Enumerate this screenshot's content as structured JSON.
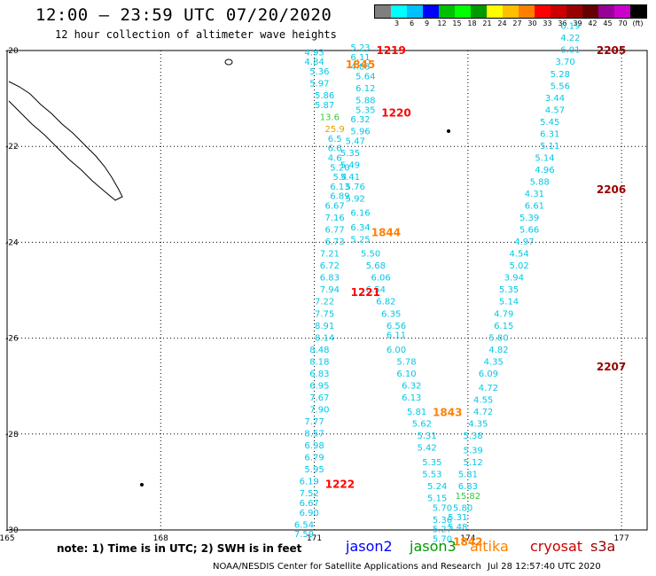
{
  "header": {
    "title": "12:00 – 23:59 UTC 07/20/2020",
    "subtitle": "12 hour collection of altimeter wave heights"
  },
  "color_scale": {
    "colors": [
      "#7f7f7f",
      "#00ffff",
      "#00bfff",
      "#0000ff",
      "#00bf00",
      "#00ff00",
      "#009900",
      "#ffff00",
      "#ffbf00",
      "#ff8000",
      "#ff0000",
      "#cc0000",
      "#990000",
      "#660000",
      "#990099",
      "#cc00cc",
      "#000000"
    ],
    "labels": [
      "",
      "3",
      "6",
      "9",
      "12",
      "15",
      "18",
      "21",
      "24",
      "27",
      "30",
      "33",
      "36",
      "39",
      "42",
      "45",
      "70"
    ],
    "unit": "(ft)"
  },
  "axes": {
    "lon_min": 165,
    "lon_max": 177.5,
    "lat_min": -30,
    "lat_max": -20,
    "x_ticks": [
      {
        "value": 165,
        "label": "165"
      },
      {
        "value": 168,
        "label": "168"
      },
      {
        "value": 171,
        "label": "171"
      },
      {
        "value": 174,
        "label": "174"
      },
      {
        "value": 177,
        "label": "177"
      }
    ],
    "y_ticks": [
      {
        "value": -20,
        "label": "-20"
      },
      {
        "value": -22,
        "label": "-22"
      },
      {
        "value": -24,
        "label": "-24"
      },
      {
        "value": -26,
        "label": "-26"
      },
      {
        "value": -28,
        "label": "-28"
      },
      {
        "value": -30,
        "label": "-30"
      }
    ]
  },
  "observations": [
    {
      "lon": 171.0,
      "lat": -20.1,
      "text": "4.93"
    },
    {
      "lon": 171.0,
      "lat": -20.3,
      "text": "4.84"
    },
    {
      "lon": 171.1,
      "lat": -20.5,
      "text": "5.36"
    },
    {
      "lon": 171.1,
      "lat": -20.75,
      "text": "5.97"
    },
    {
      "lon": 171.2,
      "lat": -21.0,
      "text": "5.86"
    },
    {
      "lon": 171.2,
      "lat": -21.2,
      "text": "5.87"
    },
    {
      "lon": 171.3,
      "lat": -21.45,
      "text": "13.6"
    },
    {
      "lon": 171.4,
      "lat": -21.7,
      "text": "25.9"
    },
    {
      "lon": 171.4,
      "lat": -21.9,
      "text": "6.5"
    },
    {
      "lon": 171.4,
      "lat": -22.1,
      "text": "6.6"
    },
    {
      "lon": 171.4,
      "lat": -22.3,
      "text": "4.6"
    },
    {
      "lon": 171.5,
      "lat": -22.5,
      "text": "5.20"
    },
    {
      "lon": 171.5,
      "lat": -22.7,
      "text": "5.4"
    },
    {
      "lon": 171.5,
      "lat": -22.9,
      "text": "6.13"
    },
    {
      "lon": 171.5,
      "lat": -23.1,
      "text": "6.89"
    },
    {
      "lon": 171.4,
      "lat": -23.3,
      "text": "6.67"
    },
    {
      "lon": 171.4,
      "lat": -23.55,
      "text": "7.16"
    },
    {
      "lon": 171.4,
      "lat": -23.8,
      "text": "6.77"
    },
    {
      "lon": 171.4,
      "lat": -24.05,
      "text": "6.73"
    },
    {
      "lon": 171.3,
      "lat": -24.3,
      "text": "7.21"
    },
    {
      "lon": 171.3,
      "lat": -24.55,
      "text": "6.72"
    },
    {
      "lon": 171.3,
      "lat": -24.8,
      "text": "6.83"
    },
    {
      "lon": 171.3,
      "lat": -25.05,
      "text": "7.94"
    },
    {
      "lon": 171.2,
      "lat": -25.3,
      "text": "7.22"
    },
    {
      "lon": 171.2,
      "lat": -25.55,
      "text": "7.75"
    },
    {
      "lon": 171.2,
      "lat": -25.8,
      "text": "8.91"
    },
    {
      "lon": 171.2,
      "lat": -26.05,
      "text": "8.14"
    },
    {
      "lon": 171.1,
      "lat": -26.3,
      "text": "8.48"
    },
    {
      "lon": 171.1,
      "lat": -26.55,
      "text": "8.18"
    },
    {
      "lon": 171.1,
      "lat": -26.8,
      "text": "6.83"
    },
    {
      "lon": 171.1,
      "lat": -27.05,
      "text": "6.95"
    },
    {
      "lon": 171.1,
      "lat": -27.3,
      "text": "7.67"
    },
    {
      "lon": 171.1,
      "lat": -27.55,
      "text": "7.90"
    },
    {
      "lon": 171.0,
      "lat": -27.8,
      "text": "7.77"
    },
    {
      "lon": 171.0,
      "lat": -28.05,
      "text": "8.57"
    },
    {
      "lon": 171.0,
      "lat": -28.3,
      "text": "6.98"
    },
    {
      "lon": 171.0,
      "lat": -28.55,
      "text": "6.79"
    },
    {
      "lon": 171.0,
      "lat": -28.8,
      "text": "5.95"
    },
    {
      "lon": 170.9,
      "lat": -29.05,
      "text": "6.19"
    },
    {
      "lon": 170.9,
      "lat": -29.3,
      "text": "7.52"
    },
    {
      "lon": 170.9,
      "lat": -29.5,
      "text": "6.67"
    },
    {
      "lon": 170.9,
      "lat": -29.7,
      "text": "6.90"
    },
    {
      "lon": 170.8,
      "lat": -29.95,
      "text": "6.54"
    },
    {
      "lon": 170.8,
      "lat": -30.15,
      "text": "7.59"
    },
    {
      "lon": 171.9,
      "lat": -20.0,
      "text": "5.23"
    },
    {
      "lon": 171.9,
      "lat": -20.2,
      "text": "6.11"
    },
    {
      "lon": 171.9,
      "lat": -20.4,
      "text": "4.83"
    },
    {
      "lon": 172.0,
      "lat": -20.6,
      "text": "5.64"
    },
    {
      "lon": 172.0,
      "lat": -20.85,
      "text": "6.12"
    },
    {
      "lon": 172.0,
      "lat": -21.1,
      "text": "5.88"
    },
    {
      "lon": 172.0,
      "lat": -21.3,
      "text": "5.35"
    },
    {
      "lon": 171.9,
      "lat": -21.5,
      "text": "6.32"
    },
    {
      "lon": 171.9,
      "lat": -21.75,
      "text": "5.96"
    },
    {
      "lon": 171.8,
      "lat": -21.95,
      "text": "5.47"
    },
    {
      "lon": 171.7,
      "lat": -22.2,
      "text": "5.35"
    },
    {
      "lon": 171.7,
      "lat": -22.45,
      "text": "5.49"
    },
    {
      "lon": 171.7,
      "lat": -22.7,
      "text": "5.41"
    },
    {
      "lon": 171.8,
      "lat": -22.9,
      "text": "5.76"
    },
    {
      "lon": 171.8,
      "lat": -23.15,
      "text": "5.92"
    },
    {
      "lon": 171.9,
      "lat": -23.45,
      "text": "6.16"
    },
    {
      "lon": 171.9,
      "lat": -23.75,
      "text": "6.34"
    },
    {
      "lon": 171.9,
      "lat": -24.0,
      "text": "5.25"
    },
    {
      "lon": 172.1,
      "lat": -24.3,
      "text": "5.50"
    },
    {
      "lon": 172.2,
      "lat": -24.55,
      "text": "5.68"
    },
    {
      "lon": 172.3,
      "lat": -24.8,
      "text": "6.06"
    },
    {
      "lon": 172.2,
      "lat": -25.05,
      "text": "6.54"
    },
    {
      "lon": 172.4,
      "lat": -25.3,
      "text": "6.82"
    },
    {
      "lon": 172.5,
      "lat": -25.55,
      "text": "6.35"
    },
    {
      "lon": 172.6,
      "lat": -25.8,
      "text": "6.56"
    },
    {
      "lon": 172.6,
      "lat": -26.0,
      "text": "6.11"
    },
    {
      "lon": 172.6,
      "lat": -26.3,
      "text": "6.00"
    },
    {
      "lon": 172.8,
      "lat": -26.55,
      "text": "5.78"
    },
    {
      "lon": 172.8,
      "lat": -26.8,
      "text": "6.10"
    },
    {
      "lon": 172.9,
      "lat": -27.05,
      "text": "6.32"
    },
    {
      "lon": 172.9,
      "lat": -27.3,
      "text": "6.13"
    },
    {
      "lon": 173.0,
      "lat": -27.6,
      "text": "5.81"
    },
    {
      "lon": 173.1,
      "lat": -27.85,
      "text": "5.62"
    },
    {
      "lon": 173.2,
      "lat": -28.1,
      "text": "5.31"
    },
    {
      "lon": 173.2,
      "lat": -28.35,
      "text": "5.42"
    },
    {
      "lon": 173.3,
      "lat": -28.65,
      "text": "5.35"
    },
    {
      "lon": 173.3,
      "lat": -28.9,
      "text": "5.53"
    },
    {
      "lon": 173.4,
      "lat": -29.15,
      "text": "5.24"
    },
    {
      "lon": 173.4,
      "lat": -29.4,
      "text": "5.15"
    },
    {
      "lon": 173.5,
      "lat": -29.6,
      "text": "5.70"
    },
    {
      "lon": 173.5,
      "lat": -29.85,
      "text": "5.36"
    },
    {
      "lon": 173.5,
      "lat": -30.05,
      "text": "5.27"
    },
    {
      "lon": 173.5,
      "lat": -30.25,
      "text": "5.70"
    },
    {
      "lon": 173.8,
      "lat": -30.0,
      "text": "5.48"
    },
    {
      "lon": 173.8,
      "lat": -29.8,
      "text": "5.31"
    },
    {
      "lon": 173.9,
      "lat": -29.6,
      "text": "5.80"
    },
    {
      "lon": 174.0,
      "lat": -29.35,
      "text": "15.82"
    },
    {
      "lon": 174.0,
      "lat": -29.15,
      "text": "6.83"
    },
    {
      "lon": 174.0,
      "lat": -28.9,
      "text": "5.81"
    },
    {
      "lon": 174.1,
      "lat": -28.65,
      "text": "5.12"
    },
    {
      "lon": 174.1,
      "lat": -28.4,
      "text": "5.39"
    },
    {
      "lon": 174.1,
      "lat": -28.1,
      "text": "5.38"
    },
    {
      "lon": 174.2,
      "lat": -27.85,
      "text": "4.35"
    },
    {
      "lon": 174.3,
      "lat": -27.6,
      "text": "4.72"
    },
    {
      "lon": 174.3,
      "lat": -27.35,
      "text": "4.55"
    },
    {
      "lon": 174.4,
      "lat": -27.1,
      "text": "4.72"
    },
    {
      "lon": 174.4,
      "lat": -26.8,
      "text": "6.09"
    },
    {
      "lon": 174.5,
      "lat": -26.55,
      "text": "4.35"
    },
    {
      "lon": 174.6,
      "lat": -26.3,
      "text": "4.82"
    },
    {
      "lon": 174.6,
      "lat": -26.05,
      "text": "5.80"
    },
    {
      "lon": 174.7,
      "lat": -25.8,
      "text": "6.15"
    },
    {
      "lon": 174.7,
      "lat": -25.55,
      "text": "4.79"
    },
    {
      "lon": 174.8,
      "lat": -25.3,
      "text": "5.14"
    },
    {
      "lon": 174.8,
      "lat": -25.05,
      "text": "5.35"
    },
    {
      "lon": 174.9,
      "lat": -24.8,
      "text": "3.94"
    },
    {
      "lon": 175.0,
      "lat": -24.55,
      "text": "5.02"
    },
    {
      "lon": 175.0,
      "lat": -24.3,
      "text": "4.54"
    },
    {
      "lon": 175.1,
      "lat": -24.05,
      "text": "4.97"
    },
    {
      "lon": 175.2,
      "lat": -23.8,
      "text": "5.66"
    },
    {
      "lon": 175.2,
      "lat": -23.55,
      "text": "5.39"
    },
    {
      "lon": 175.3,
      "lat": -23.3,
      "text": "6.61"
    },
    {
      "lon": 175.3,
      "lat": -23.05,
      "text": "4.31"
    },
    {
      "lon": 175.4,
      "lat": -22.8,
      "text": "5.88"
    },
    {
      "lon": 175.5,
      "lat": -22.55,
      "text": "4.96"
    },
    {
      "lon": 175.5,
      "lat": -22.3,
      "text": "5.14"
    },
    {
      "lon": 175.6,
      "lat": -22.05,
      "text": "5.11"
    },
    {
      "lon": 175.6,
      "lat": -21.8,
      "text": "6.31"
    },
    {
      "lon": 175.6,
      "lat": -21.55,
      "text": "5.45"
    },
    {
      "lon": 175.7,
      "lat": -21.3,
      "text": "4.57"
    },
    {
      "lon": 175.7,
      "lat": -21.05,
      "text": "3.44"
    },
    {
      "lon": 175.8,
      "lat": -20.8,
      "text": "5.56"
    },
    {
      "lon": 175.8,
      "lat": -20.55,
      "text": "5.28"
    },
    {
      "lon": 175.9,
      "lat": -20.3,
      "text": "3.70"
    },
    {
      "lon": 176.0,
      "lat": -20.05,
      "text": "6.01"
    },
    {
      "lon": 176.0,
      "lat": -19.8,
      "text": "4.22"
    },
    {
      "lon": 176.0,
      "lat": -19.55,
      "text": "6.19"
    }
  ],
  "time_labels": [
    {
      "lon": 172.5,
      "lat": -20.0,
      "text": "1219",
      "color": "#ff0000"
    },
    {
      "lon": 171.9,
      "lat": -20.3,
      "text": "1845",
      "color": "#ff8000"
    },
    {
      "lon": 172.6,
      "lat": -21.3,
      "text": "1220",
      "color": "#ff0000"
    },
    {
      "lon": 172.4,
      "lat": -23.8,
      "text": "1844",
      "color": "#ff8000"
    },
    {
      "lon": 172.0,
      "lat": -25.05,
      "text": "1221",
      "color": "#ff0000"
    },
    {
      "lon": 176.8,
      "lat": -26.6,
      "text": "2207",
      "color": "#990000"
    },
    {
      "lon": 173.6,
      "lat": -27.55,
      "text": "1843",
      "color": "#ff8000"
    },
    {
      "lon": 171.5,
      "lat": -29.05,
      "text": "1222",
      "color": "#ff0000"
    },
    {
      "lon": 174.0,
      "lat": -30.25,
      "text": "1842",
      "color": "#ff8000"
    },
    {
      "lon": 176.8,
      "lat": -22.9,
      "text": "2206",
      "color": "#990000"
    },
    {
      "lon": 176.8,
      "lat": -20.0,
      "text": "2205",
      "color": "#990000"
    }
  ],
  "footer": {
    "note": "note: 1) Time is in UTC; 2) SWH is in feet",
    "legend": [
      {
        "text": "jason2",
        "color": "#0000ff"
      },
      {
        "text": "jason3",
        "color": "#009900"
      },
      {
        "text": "altika",
        "color": "#ff8000"
      },
      {
        "text": "cryosat",
        "color": "#cc0000"
      },
      {
        "text": "s3a",
        "color": "#990000"
      }
    ],
    "credit": "NOAA/NESDIS Center for Satellite Applications and Research",
    "timestamp": "Jul 28 12:57:40 UTC 2020"
  }
}
